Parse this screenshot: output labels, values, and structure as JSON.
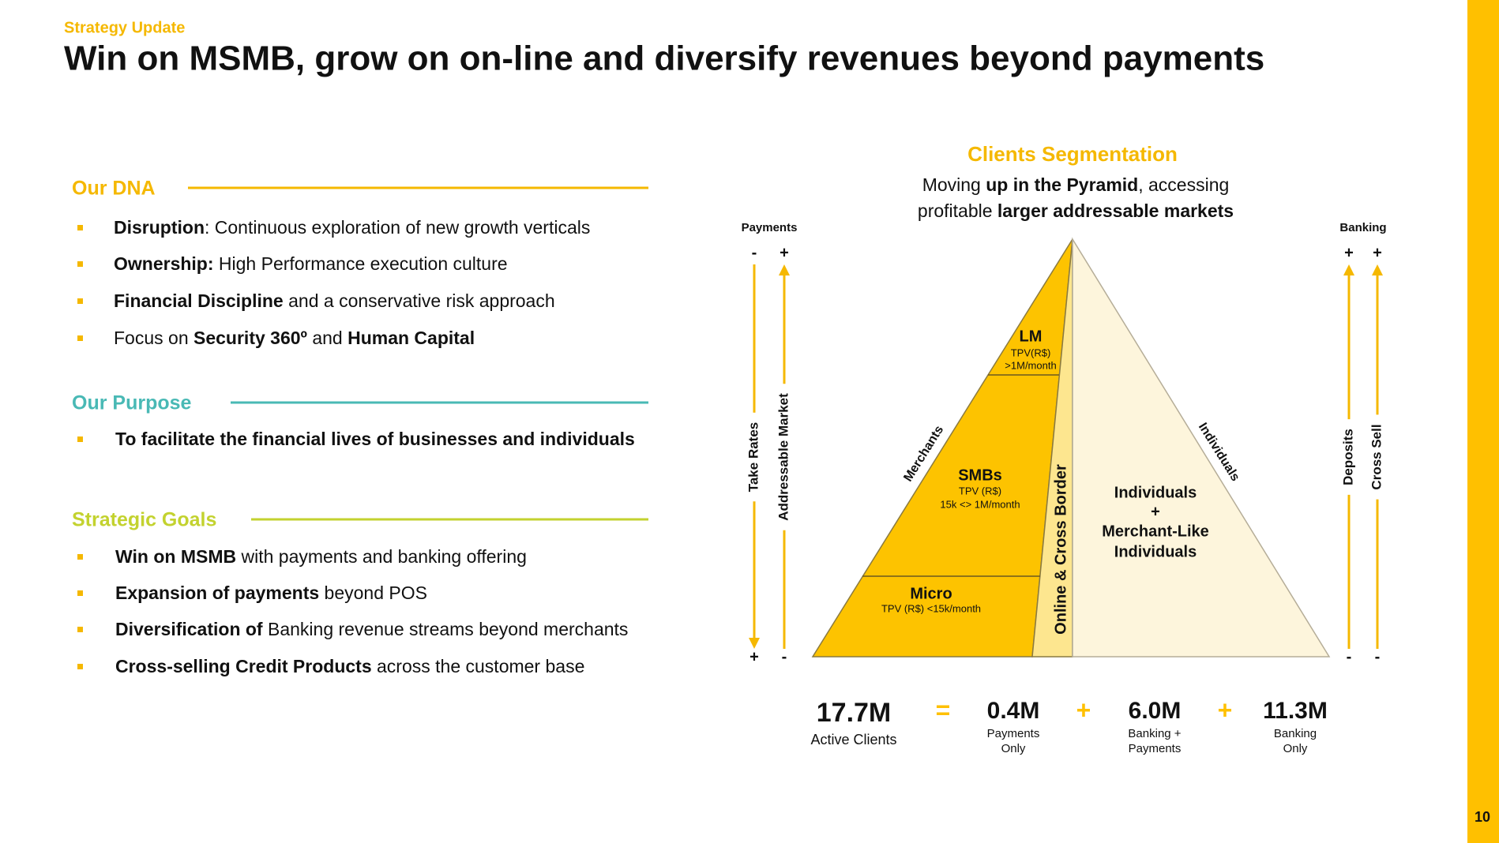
{
  "header": {
    "kicker": "Strategy Update",
    "title": "Win on MSMB, grow on on-line and diversify revenues beyond payments"
  },
  "sections": [
    {
      "title": "Our DNA",
      "items": [
        [
          {
            "strong": "Disruption"
          },
          {
            "text": ": Continuous exploration of new growth verticals"
          }
        ],
        [
          {
            "strong": "Ownership:"
          },
          {
            "text": " High Performance execution culture"
          }
        ],
        [
          {
            "strong": "Financial Discipline"
          },
          {
            "text": " and a conservative risk approach"
          }
        ],
        [
          {
            "text": "Focus on "
          },
          {
            "strong": "Security 360º"
          },
          {
            "text": " and "
          },
          {
            "strong": "Human Capital"
          }
        ]
      ]
    },
    {
      "title": "Our Purpose",
      "items": [
        [
          {
            "strong": "To facilitate the financial lives of businesses and individuals"
          }
        ]
      ]
    },
    {
      "title": "Strategic Goals",
      "items": [
        [
          {
            "strong": "Win on MSMB"
          },
          {
            "text": " with payments and banking offering"
          }
        ],
        [
          {
            "strong": "Expansion of payments"
          },
          {
            "text": " beyond POS"
          }
        ],
        [
          {
            "strong": "Diversification of"
          },
          {
            "text": " Banking revenue streams beyond merchants"
          }
        ],
        [
          {
            "strong": "Cross-selling Credit Products"
          },
          {
            "text": " across the customer base"
          }
        ]
      ]
    }
  ],
  "segmentation": {
    "title": "Clients Segmentation",
    "subtitle": [
      [
        {
          "text": "Moving "
        },
        {
          "strong": "up in the Pyramid"
        },
        {
          "text": ", accessing"
        }
      ],
      [
        {
          "text": "profitable "
        },
        {
          "strong": "larger addressable markets"
        }
      ]
    ],
    "left_axis": {
      "title": "Payments",
      "top": [
        "-",
        "+"
      ],
      "bottom": [
        "+",
        "-"
      ],
      "labels": [
        "Take Rates",
        "Addressable Market"
      ]
    },
    "right_axis": {
      "title": "Banking",
      "top": [
        "+",
        "+"
      ],
      "bottom": [
        "-",
        "-"
      ],
      "labels": [
        "Deposits",
        "Cross Sell"
      ]
    },
    "pyramid": {
      "tiers": [
        {
          "name": "LM",
          "detail": [
            "TPV(R$)",
            ">1M/month"
          ]
        },
        {
          "name": "SMBs",
          "detail": [
            "TPV (R$)",
            "15k <> 1M/month"
          ]
        },
        {
          "name": "Micro",
          "detail": [
            "TPV (R$) <15k/month"
          ]
        }
      ],
      "strip": "Online & Cross Border",
      "left_edge": "Merchants",
      "right_edge": "Individuals",
      "right_block": [
        "Individuals",
        "+",
        "Merchant-Like",
        "Individuals"
      ]
    }
  },
  "clients": {
    "total": {
      "value": "17.7M",
      "label": "Active Clients"
    },
    "operators": [
      "=",
      "+",
      "+"
    ],
    "parts": [
      {
        "value": "0.4M",
        "label": [
          "Payments",
          "Only"
        ]
      },
      {
        "value": "6.0M",
        "label": [
          "Banking +",
          "Payments"
        ]
      },
      {
        "value": "11.3M",
        "label": [
          "Banking",
          "Only"
        ]
      }
    ]
  },
  "page_number": "10"
}
